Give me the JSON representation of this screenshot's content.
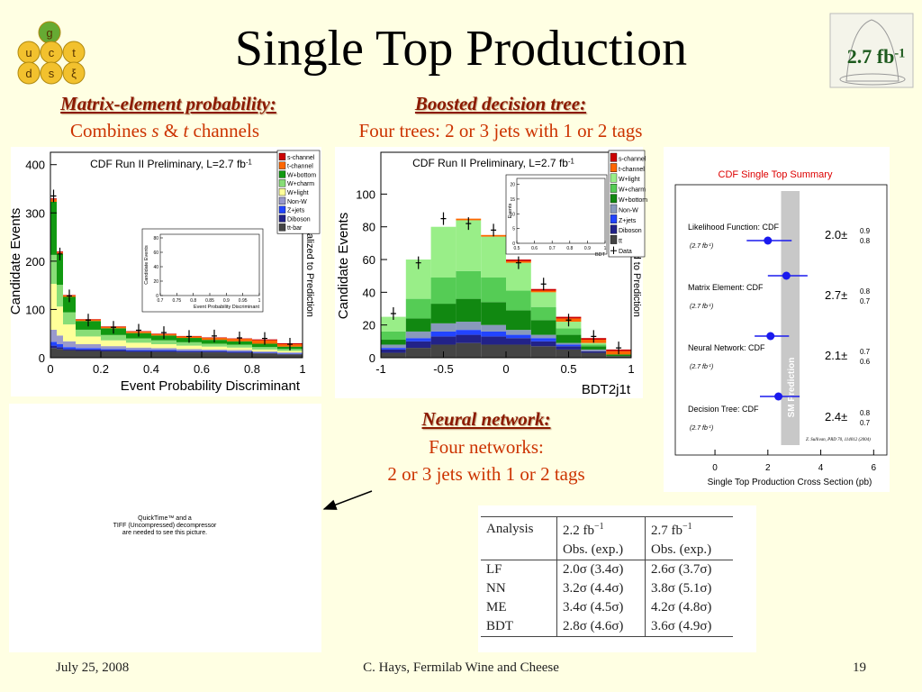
{
  "header": {
    "title": "Single Top Production",
    "logo": [
      "g",
      "u",
      "c",
      "t",
      "d",
      "s",
      "ξ"
    ],
    "badge": {
      "text": "2.7 fb",
      "sup": "-1"
    }
  },
  "captions": {
    "me": {
      "heading": "Matrix-element probability:",
      "line": [
        "Combines ",
        "s",
        " & ",
        "t",
        " channels"
      ]
    },
    "bdt": {
      "heading": "Boosted decision tree:",
      "line": "Four trees: 2 or 3 jets with 1 or 2 tags"
    },
    "nn": {
      "heading": "Neural network:",
      "lines": [
        "Four networks:",
        "2 or 3 jets with 1 or 2 tags"
      ]
    }
  },
  "histograms": [
    {
      "title": "CDF Run II Preliminary, L=2.7 fb",
      "title_sup": "-1",
      "xlabel": "Event Probability Discriminant",
      "ylabel": "Candidate Events",
      "side_label": "Normalized to Prediction",
      "bins": [
        0,
        0.025,
        0.05,
        0.1,
        0.2,
        0.3,
        0.4,
        0.5,
        0.6,
        0.7,
        0.8,
        0.9,
        1
      ],
      "xlim": [
        0,
        1
      ],
      "ylim": [
        0,
        420
      ],
      "xticks": [
        0,
        0.2,
        0.4,
        0.6,
        0.8,
        1
      ],
      "yticks": [
        0,
        100,
        200,
        300,
        400
      ],
      "legend": "upper right",
      "series": [
        {
          "name": "s-channel",
          "color": "#cc0000",
          "values": [
            2,
            2,
            1,
            1,
            1,
            1,
            1,
            1,
            1,
            1,
            2,
            2
          ]
        },
        {
          "name": "t-channel",
          "color": "#ff6600",
          "values": [
            5,
            3,
            3,
            3,
            3,
            3,
            3,
            3,
            4,
            5,
            7,
            5
          ]
        },
        {
          "name": "W+bottom",
          "color": "#119911",
          "values": [
            110,
            64,
            32,
            18,
            14,
            11,
            10,
            9,
            8,
            7,
            7,
            5
          ]
        },
        {
          "name": "W+charm",
          "color": "#88dd77",
          "values": [
            60,
            45,
            25,
            14,
            11,
            9,
            8,
            7,
            6,
            6,
            5,
            4
          ]
        },
        {
          "name": "W+light",
          "color": "#ffff99",
          "values": [
            95,
            60,
            35,
            16,
            12,
            10,
            8,
            7,
            6,
            5,
            4,
            3
          ]
        },
        {
          "name": "Non-W",
          "color": "#9999cc",
          "values": [
            25,
            18,
            12,
            8,
            6,
            5,
            4,
            4,
            3,
            3,
            2,
            2
          ]
        },
        {
          "name": "Z+jets",
          "color": "#2244ff",
          "values": [
            8,
            6,
            4,
            3,
            2,
            2,
            2,
            1,
            1,
            1,
            1,
            1
          ]
        },
        {
          "name": "Diboson",
          "color": "#222288",
          "values": [
            5,
            4,
            3,
            3,
            3,
            2,
            2,
            2,
            2,
            2,
            1,
            1
          ]
        },
        {
          "name": "tt-bar",
          "color": "#444444",
          "values": [
            20,
            18,
            15,
            14,
            13,
            12,
            12,
            11,
            11,
            10,
            9,
            7
          ]
        }
      ],
      "observed": [
        335,
        215,
        128,
        78,
        63,
        57,
        52,
        44,
        45,
        41,
        40,
        28
      ],
      "inset": {
        "xlabel": "Event Probability Discriminant",
        "ylabel": "Candidate Events",
        "xlim": [
          0.7,
          1
        ],
        "ylim": [
          0,
          85
        ],
        "xticks": [
          0.7,
          0.75,
          0.8,
          0.85,
          0.9,
          0.95,
          1
        ],
        "yticks": [
          0,
          20,
          40,
          60,
          80
        ]
      }
    },
    {
      "title": "CDF Run II Preliminary, L=2.7 fb",
      "title_sup": "-1",
      "xlabel": "BDT2j1t",
      "ylabel": "Candidate Events",
      "side_label": "Normalized to Prediction",
      "bins": [
        -1,
        -0.8,
        -0.6,
        -0.4,
        -0.2,
        0,
        0.2,
        0.4,
        0.6,
        0.8,
        1
      ],
      "xlim": [
        -1,
        1
      ],
      "ylim": [
        0,
        125
      ],
      "xticks": [
        -1,
        -0.5,
        0,
        0.5,
        1
      ],
      "yticks": [
        0,
        20,
        40,
        60,
        80,
        100
      ],
      "legend": "upper right",
      "series": [
        {
          "name": "s-channel",
          "color": "#cc0000",
          "values": [
            0,
            0,
            0,
            0,
            0,
            1,
            1,
            1,
            1,
            1
          ]
        },
        {
          "name": "t-channel",
          "color": "#ff6600",
          "values": [
            0,
            0,
            0,
            1,
            1,
            1,
            1,
            2,
            2,
            2
          ]
        },
        {
          "name": "W+light",
          "color": "#99ee88",
          "values": [
            9,
            24,
            31,
            31,
            25,
            17,
            9,
            4,
            1,
            0
          ]
        },
        {
          "name": "W+charm",
          "color": "#55cc55",
          "values": [
            5,
            12,
            16,
            17,
            15,
            12,
            8,
            4,
            1,
            0
          ]
        },
        {
          "name": "W+bottom",
          "color": "#118811",
          "values": [
            3,
            8,
            12,
            14,
            14,
            12,
            9,
            5,
            2,
            1
          ]
        },
        {
          "name": "Non-W",
          "color": "#8899bb",
          "values": [
            2,
            4,
            5,
            5,
            4,
            3,
            2,
            1,
            1,
            0
          ]
        },
        {
          "name": "Z+jets",
          "color": "#2244ff",
          "values": [
            1,
            2,
            3,
            3,
            3,
            2,
            2,
            1,
            0,
            0
          ]
        },
        {
          "name": "Diboson",
          "color": "#222288",
          "values": [
            2,
            4,
            5,
            5,
            5,
            4,
            3,
            2,
            1,
            0
          ]
        },
        {
          "name": "tt",
          "color": "#444444",
          "values": [
            3,
            6,
            8,
            9,
            8,
            8,
            7,
            5,
            3,
            1
          ]
        }
      ],
      "observed": [
        27,
        58,
        85,
        82,
        78,
        58,
        45,
        23,
        13,
        6
      ],
      "data_name": "Data",
      "inset": {
        "xlabel": "BDT",
        "ylabel": "Events",
        "xlim": [
          0.5,
          1
        ],
        "ylim": [
          0,
          22
        ],
        "xticks": [
          0.5,
          0.6,
          0.7,
          0.8,
          0.9,
          1
        ],
        "yticks": [
          0,
          5,
          10,
          15,
          20
        ]
      }
    }
  ],
  "summary": {
    "title": "CDF Single Top Summary",
    "xlabel": "Single Top Production Cross Section (pb)",
    "xlim": [
      -1.5,
      6.5
    ],
    "xticks": [
      0,
      2,
      4,
      6
    ],
    "pm_symbol": "±",
    "luminosity": {
      "text": "(2.7 fb",
      "sup": "-1",
      "end": ")"
    },
    "sm_band": [
      2.5,
      3.2
    ],
    "sm_label": "SM Prediction",
    "citation": "Z. Sullivan, PRD 70, 114012 (2004)",
    "entries": [
      {
        "label": "Likelihood Function: CDF",
        "value": 2.0,
        "value_label": "2.0",
        "plus": 0.9,
        "minus": 0.8
      },
      {
        "label": "Matrix Element: CDF",
        "value": 2.7,
        "value_label": "2.7",
        "plus": 0.8,
        "minus": 0.7
      },
      {
        "label": "Neural Network: CDF",
        "value": 2.1,
        "value_label": "2.1",
        "plus": 0.7,
        "minus": 0.6
      },
      {
        "label": "Decision Tree: CDF",
        "value": 2.4,
        "value_label": "2.4",
        "plus": 0.8,
        "minus": 0.7
      }
    ]
  },
  "placeholder": [
    "QuickTime™ and a",
    "TIFF (Uncompressed) decompressor",
    "are needed to see this picture."
  ],
  "table": {
    "header": [
      {
        "text": "Analysis"
      },
      {
        "text": "2.2 fb",
        "sup": "−1"
      },
      {
        "text": "2.7 fb",
        "sup": "−1"
      }
    ],
    "subheader": [
      "Obs. (exp.)",
      "Obs. (exp.)"
    ],
    "rows": [
      [
        "LF",
        "2.0σ (3.4σ)",
        "2.6σ (3.7σ)"
      ],
      [
        "NN",
        "3.2σ (4.4σ)",
        "3.8σ (5.1σ)"
      ],
      [
        "ME",
        "3.4σ (4.5σ)",
        "4.2σ (4.8σ)"
      ],
      [
        "BDT",
        "2.8σ (4.6σ)",
        "3.6σ (4.9σ)"
      ]
    ]
  },
  "footer": {
    "date": "July 25, 2008",
    "author": "C. Hays, Fermilab Wine and Cheese",
    "page": "19"
  }
}
